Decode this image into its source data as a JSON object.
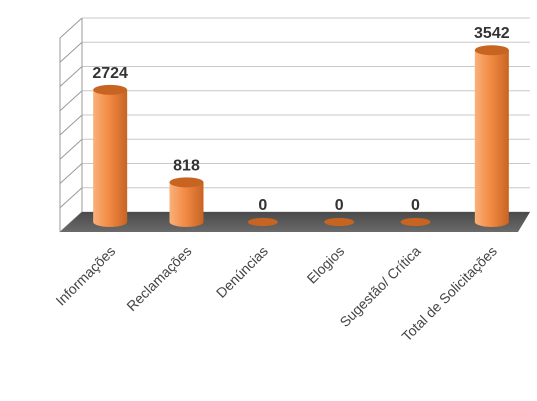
{
  "chart_data": {
    "type": "bar",
    "categories": [
      "Informações",
      "Reclamações",
      "Denúncias",
      "Elogios",
      "Sugestão/ Crítica",
      "Total de Solicitações"
    ],
    "values": [
      2724,
      818,
      0,
      0,
      0,
      3542
    ],
    "data_labels": [
      "2724",
      "818",
      "0",
      "0",
      "0",
      "3542"
    ],
    "ylim": [
      0,
      4000
    ],
    "grid": true,
    "colors": {
      "bar": "#f28b45",
      "bar_light": "#f9b179",
      "bar_dark": "#c86422",
      "floor": "#5a5a5a",
      "grid": "#c8c8c8"
    }
  }
}
